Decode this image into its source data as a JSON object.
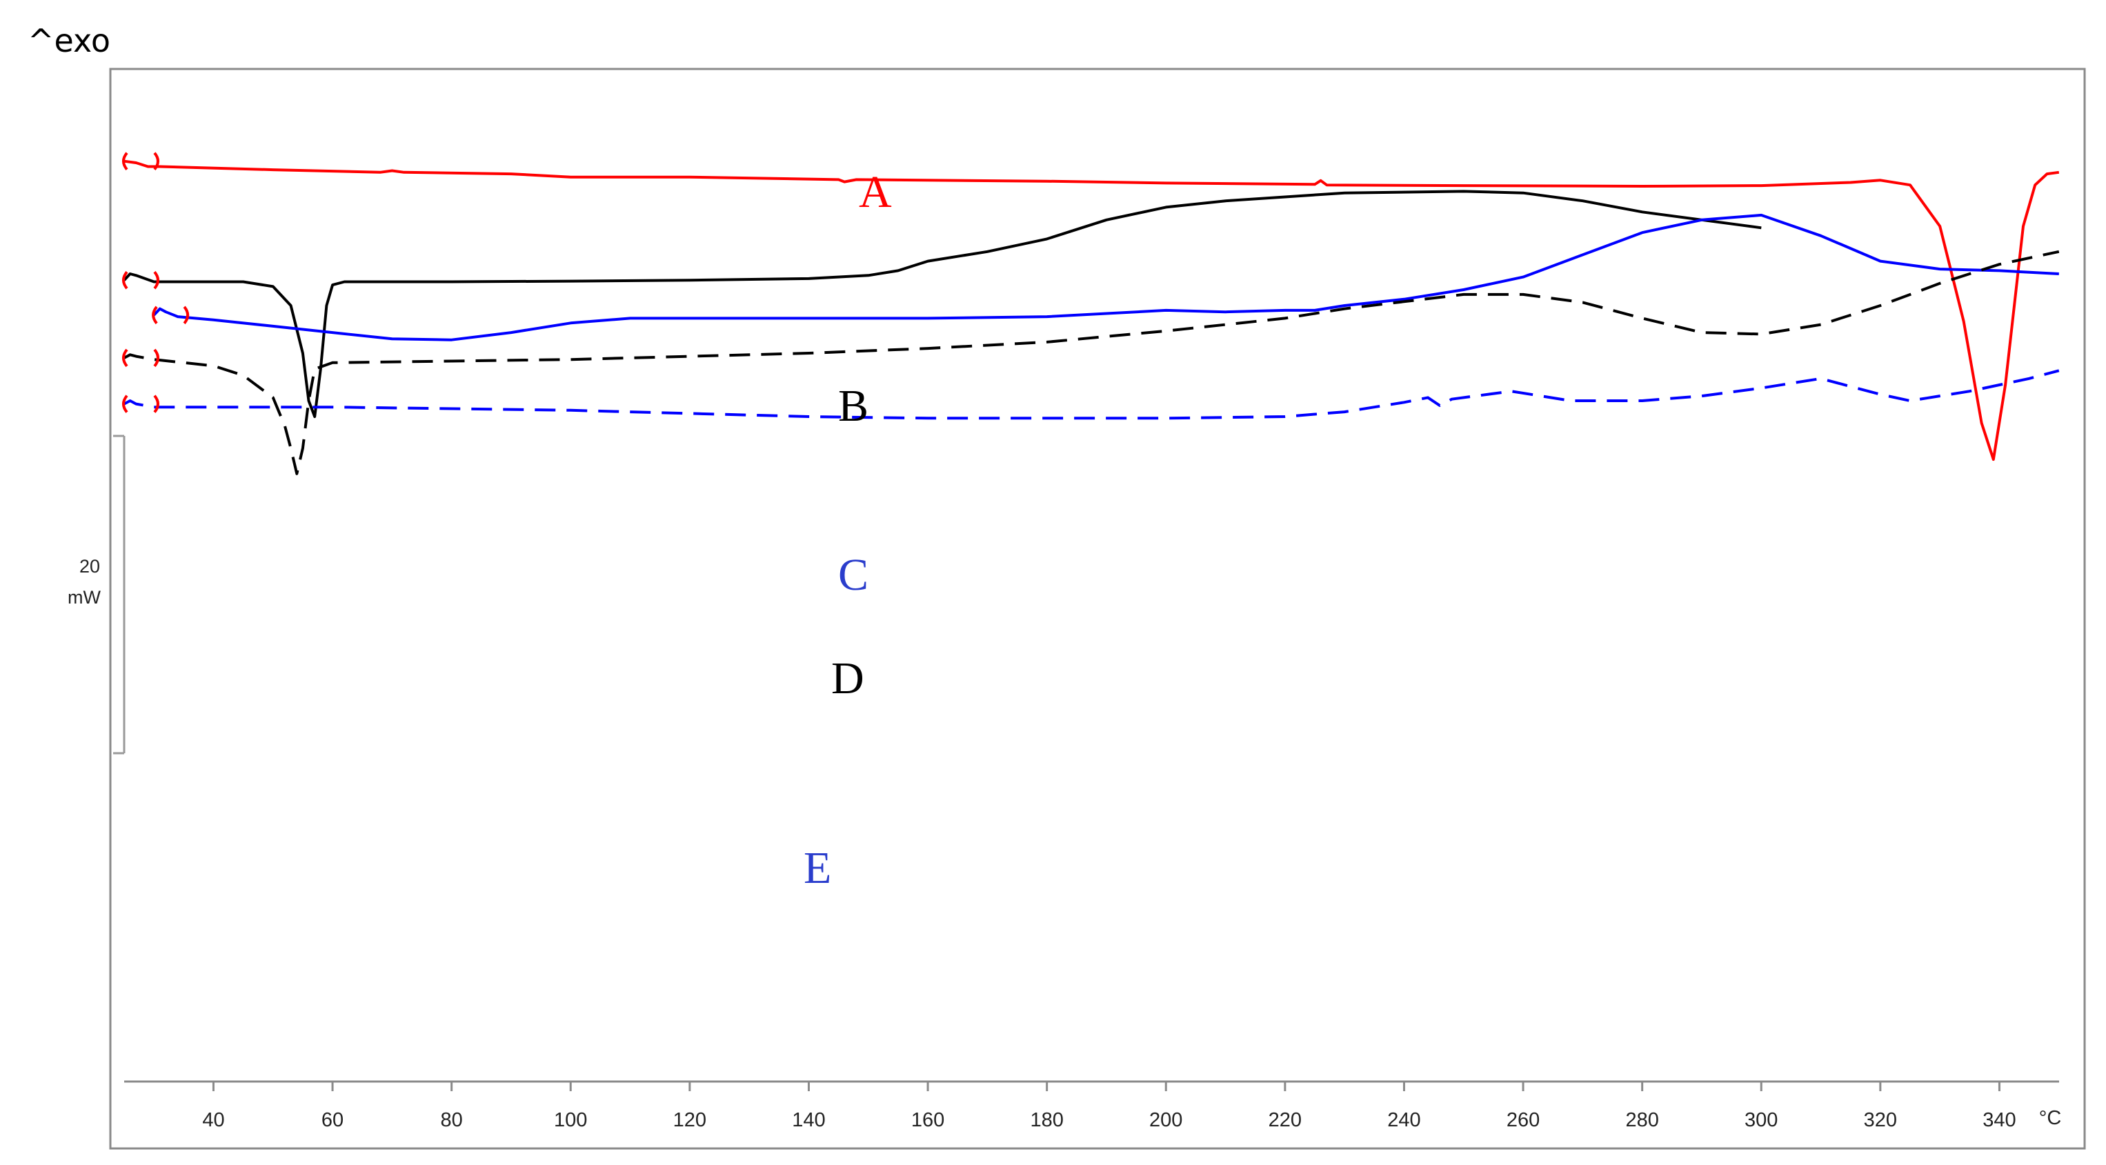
{
  "chart_data": {
    "type": "line",
    "title": "",
    "corner_label": "^exo",
    "xlabel": "",
    "x_unit": "°C",
    "xlim": [
      25,
      350
    ],
    "x_ticks": [
      40,
      60,
      80,
      100,
      120,
      140,
      160,
      180,
      200,
      220,
      240,
      260,
      280,
      300,
      320,
      340
    ],
    "scale_bar": {
      "value": "20",
      "unit": "mW"
    },
    "legend": "none",
    "grid": false,
    "y_unit_note": "heat flow, exothermic up (arbitrary offset)",
    "series": [
      {
        "name": "A",
        "color": "#ff0000",
        "dash": "solid",
        "points": [
          [
            25,
            -9.5
          ],
          [
            27,
            -10.0
          ],
          [
            29,
            -11.2
          ],
          [
            31,
            -11.2
          ],
          [
            50,
            -12.2
          ],
          [
            68,
            -13.0
          ],
          [
            70,
            -12.5
          ],
          [
            72,
            -13.0
          ],
          [
            90,
            -13.5
          ],
          [
            100,
            -14.5
          ],
          [
            120,
            -14.5
          ],
          [
            145,
            -15.3
          ],
          [
            146,
            -16.0
          ],
          [
            148,
            -15.3
          ],
          [
            180,
            -15.8
          ],
          [
            200,
            -16.4
          ],
          [
            225,
            -16.8
          ],
          [
            226,
            -15.6
          ],
          [
            227,
            -17.0
          ],
          [
            250,
            -17.2
          ],
          [
            280,
            -17.4
          ],
          [
            300,
            -17.2
          ],
          [
            315,
            -16.2
          ],
          [
            320,
            -15.5
          ],
          [
            325,
            -17.0
          ],
          [
            330,
            -30.0
          ],
          [
            334,
            -60.0
          ],
          [
            337,
            -92.0
          ],
          [
            339,
            -103.5
          ],
          [
            341,
            -80.0
          ],
          [
            344,
            -30.0
          ],
          [
            346,
            -17.0
          ],
          [
            348,
            -13.5
          ],
          [
            350,
            -13.0
          ]
        ]
      },
      {
        "name": "B",
        "color": "#000000",
        "dash": "solid",
        "points": [
          [
            25,
            -47.0
          ],
          [
            26,
            -45.0
          ],
          [
            27,
            -45.5
          ],
          [
            30,
            -47.5
          ],
          [
            45,
            -47.5
          ],
          [
            50,
            -49.0
          ],
          [
            53,
            -55.0
          ],
          [
            55,
            -70.0
          ],
          [
            56,
            -85.0
          ],
          [
            57,
            -90.0
          ],
          [
            58,
            -75.0
          ],
          [
            59,
            -55.0
          ],
          [
            60,
            -48.5
          ],
          [
            62,
            -47.5
          ],
          [
            80,
            -47.5
          ],
          [
            100,
            -47.3
          ],
          [
            120,
            -47.0
          ],
          [
            140,
            -46.5
          ],
          [
            150,
            -45.5
          ],
          [
            155,
            -44.0
          ],
          [
            160,
            -41.0
          ],
          [
            170,
            -38.0
          ],
          [
            180,
            -34.0
          ],
          [
            190,
            -28.0
          ],
          [
            200,
            -24.0
          ],
          [
            210,
            -22.0
          ],
          [
            230,
            -19.5
          ],
          [
            250,
            -19.0
          ],
          [
            260,
            -19.5
          ],
          [
            270,
            -22.0
          ],
          [
            280,
            -25.5
          ],
          [
            300,
            -30.5
          ]
        ]
      },
      {
        "name": "C",
        "color": "#0000ff",
        "dash": "solid",
        "points": [
          [
            30,
            -58.0
          ],
          [
            31,
            -56.0
          ],
          [
            32,
            -57.0
          ],
          [
            34,
            -58.5
          ],
          [
            40,
            -59.5
          ],
          [
            50,
            -61.5
          ],
          [
            60,
            -63.5
          ],
          [
            70,
            -65.5
          ],
          [
            80,
            -65.8
          ],
          [
            90,
            -63.5
          ],
          [
            100,
            -60.5
          ],
          [
            110,
            -59.0
          ],
          [
            130,
            -59.0
          ],
          [
            160,
            -59.0
          ],
          [
            180,
            -58.5
          ],
          [
            190,
            -57.5
          ],
          [
            200,
            -56.5
          ],
          [
            210,
            -57.0
          ],
          [
            220,
            -56.5
          ],
          [
            225,
            -56.5
          ],
          [
            230,
            -55.0
          ],
          [
            240,
            -53.0
          ],
          [
            250,
            -50.0
          ],
          [
            260,
            -46.0
          ],
          [
            270,
            -39.0
          ],
          [
            280,
            -32.0
          ],
          [
            290,
            -28.0
          ],
          [
            300,
            -26.5
          ],
          [
            310,
            -33.0
          ],
          [
            320,
            -41.0
          ],
          [
            330,
            -43.5
          ],
          [
            340,
            -44.0
          ],
          [
            350,
            -45.0
          ]
        ]
      },
      {
        "name": "D",
        "color": "#000000",
        "dash": "dashed",
        "points": [
          [
            25,
            -71.5
          ],
          [
            26,
            -70.5
          ],
          [
            27,
            -71.0
          ],
          [
            30,
            -72.0
          ],
          [
            40,
            -74.0
          ],
          [
            45,
            -77.0
          ],
          [
            50,
            -84.0
          ],
          [
            52,
            -93.0
          ],
          [
            53,
            -100.0
          ],
          [
            54,
            -108.0
          ],
          [
            55,
            -100.0
          ],
          [
            56,
            -85.0
          ],
          [
            57,
            -75.0
          ],
          [
            60,
            -73.0
          ],
          [
            80,
            -72.5
          ],
          [
            100,
            -72.0
          ],
          [
            120,
            -71.0
          ],
          [
            140,
            -70.0
          ],
          [
            160,
            -68.5
          ],
          [
            180,
            -66.5
          ],
          [
            200,
            -63.0
          ],
          [
            220,
            -59.0
          ],
          [
            230,
            -56.0
          ],
          [
            250,
            -51.5
          ],
          [
            260,
            -51.5
          ],
          [
            270,
            -54.0
          ],
          [
            280,
            -59.0
          ],
          [
            290,
            -63.5
          ],
          [
            300,
            -64.0
          ],
          [
            310,
            -61.0
          ],
          [
            320,
            -55.0
          ],
          [
            330,
            -48.0
          ],
          [
            340,
            -42.0
          ],
          [
            350,
            -38.0
          ]
        ]
      },
      {
        "name": "E",
        "color": "#0000ff",
        "dash": "dashed",
        "points": [
          [
            25,
            -86.0
          ],
          [
            26,
            -85.0
          ],
          [
            27,
            -86.0
          ],
          [
            30,
            -87.0
          ],
          [
            60,
            -87.0
          ],
          [
            100,
            -88.0
          ],
          [
            120,
            -89.0
          ],
          [
            140,
            -90.0
          ],
          [
            160,
            -90.5
          ],
          [
            200,
            -90.5
          ],
          [
            220,
            -90.0
          ],
          [
            230,
            -88.5
          ],
          [
            240,
            -85.5
          ],
          [
            244,
            -84.0
          ],
          [
            246,
            -86.5
          ],
          [
            248,
            -84.5
          ],
          [
            258,
            -82.0
          ],
          [
            268,
            -85.0
          ],
          [
            280,
            -85.0
          ],
          [
            290,
            -83.5
          ],
          [
            300,
            -81.0
          ],
          [
            310,
            -78.0
          ],
          [
            320,
            -83.0
          ],
          [
            325,
            -85.0
          ],
          [
            335,
            -82.0
          ],
          [
            345,
            -78.0
          ],
          [
            350,
            -75.5
          ]
        ]
      }
    ]
  }
}
